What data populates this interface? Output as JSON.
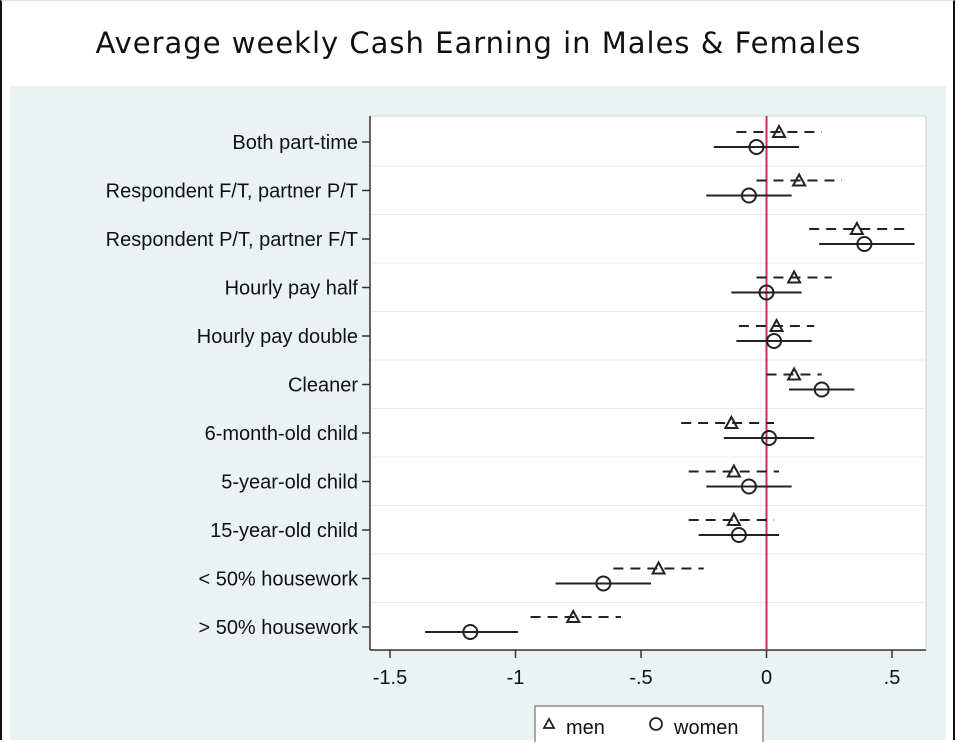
{
  "title": "Average weekly  Cash Earning in Males & Females",
  "chart_data": {
    "type": "scatter",
    "title": "Average weekly  Cash Earning in Males & Females",
    "xlabel": "",
    "ylabel": "",
    "xlim": [
      -1.5,
      0.6
    ],
    "xticks": [
      -1.5,
      -1,
      -0.5,
      0,
      0.5
    ],
    "xtick_labels": [
      "-1.5",
      "-1",
      "-.5",
      "0",
      ".5"
    ],
    "reference_line_x": 0,
    "reference_line_color": "#c0305a",
    "categories": [
      "Both part-time",
      "Respondent F/T, partner P/T",
      "Respondent P/T, partner F/T",
      "Hourly pay half",
      "Hourly pay double",
      "Cleaner",
      "6-month-old child",
      "5-year-old child",
      "15-year-old child",
      "< 50% housework",
      "> 50% housework"
    ],
    "series": [
      {
        "name": "men",
        "marker": "triangle",
        "line_style": "dashed",
        "values": [
          0.05,
          0.13,
          0.36,
          0.11,
          0.04,
          0.11,
          -0.14,
          -0.13,
          -0.13,
          -0.43,
          -0.77
        ],
        "ci_low": [
          -0.12,
          -0.04,
          0.17,
          -0.04,
          -0.11,
          0.0,
          -0.34,
          -0.31,
          -0.31,
          -0.61,
          -0.94
        ],
        "ci_high": [
          0.22,
          0.3,
          0.55,
          0.26,
          0.19,
          0.22,
          0.03,
          0.05,
          0.03,
          -0.25,
          -0.58
        ]
      },
      {
        "name": "women",
        "marker": "circle",
        "line_style": "solid",
        "values": [
          -0.04,
          -0.07,
          0.39,
          0.0,
          0.03,
          0.22,
          0.01,
          -0.07,
          -0.11,
          -0.65,
          -1.18
        ],
        "ci_low": [
          -0.21,
          -0.24,
          0.21,
          -0.14,
          -0.12,
          0.09,
          -0.17,
          -0.24,
          -0.27,
          -0.84,
          -1.36
        ],
        "ci_high": [
          0.13,
          0.1,
          0.59,
          0.14,
          0.18,
          0.35,
          0.19,
          0.1,
          0.05,
          -0.46,
          -0.99
        ]
      }
    ],
    "grid": true,
    "legend": {
      "position": "bottom-center",
      "entries": [
        "men",
        "women"
      ]
    }
  }
}
